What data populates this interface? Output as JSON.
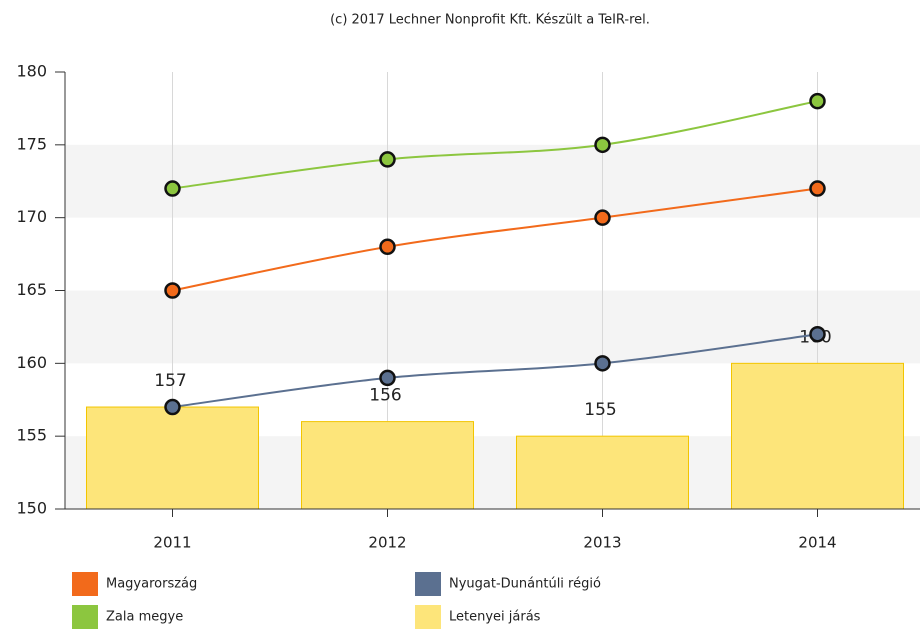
{
  "chart_data": {
    "type": "bar",
    "title": "(c) 2017 Lechner Nonprofit Kft. Készült a TeIR-rel.",
    "categories": [
      "2011",
      "2012",
      "2013",
      "2014"
    ],
    "series": [
      {
        "name": "Magyarország",
        "type": "line",
        "color": "#f26a1b",
        "values": [
          165,
          168,
          170,
          172
        ]
      },
      {
        "name": "Nyugat-Dunántúli régió",
        "type": "line",
        "color": "#5b7090",
        "values": [
          157,
          159,
          160,
          162
        ]
      },
      {
        "name": "Zala megye",
        "type": "line",
        "color": "#8cc63f",
        "values": [
          172,
          174,
          175,
          178
        ]
      },
      {
        "name": "Letenyei járás",
        "type": "bar",
        "color": "#fde57a",
        "values": [
          157,
          156,
          155,
          160
        ]
      }
    ],
    "ylim": [
      150,
      180
    ],
    "yticks": [
      150,
      155,
      160,
      165,
      170,
      175,
      180
    ],
    "grid": true,
    "alternate_bands": true,
    "legend": "bottom"
  }
}
